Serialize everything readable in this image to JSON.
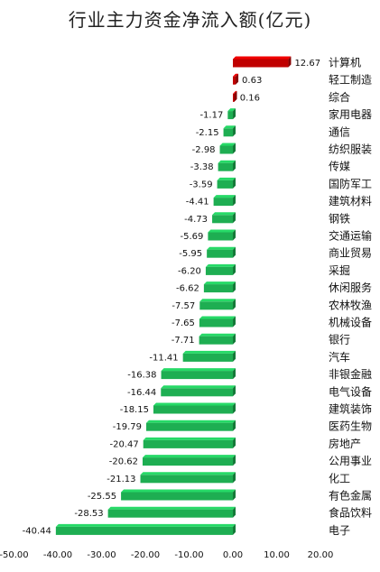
{
  "chart_data": {
    "type": "bar",
    "orientation": "horizontal",
    "title": "行业主力资金净流入额(亿元)",
    "categories": [
      "计算机",
      "轻工制造",
      "综合",
      "家用电器",
      "通信",
      "纺织服装",
      "传媒",
      "国防军工",
      "建筑材料",
      "钢铁",
      "交通运输",
      "商业贸易",
      "采掘",
      "休闲服务",
      "农林牧渔",
      "机械设备",
      "银行",
      "汽车",
      "非银金融",
      "电气设备",
      "建筑装饰",
      "医药生物",
      "房地产",
      "公用事业",
      "化工",
      "有色金属",
      "食品饮料",
      "电子"
    ],
    "values": [
      12.67,
      0.63,
      0.16,
      -1.17,
      -2.15,
      -2.98,
      -3.38,
      -3.59,
      -4.41,
      -4.73,
      -5.69,
      -5.95,
      -6.2,
      -6.62,
      -7.57,
      -7.65,
      -7.71,
      -11.41,
      -16.38,
      -16.44,
      -18.15,
      -19.79,
      -20.47,
      -20.62,
      -21.13,
      -25.55,
      -28.53,
      -40.44
    ],
    "value_labels": [
      "12.67",
      "0.63",
      "0.16",
      "-1.17",
      "-2.15",
      "-2.98",
      "-3.38",
      "-3.59",
      "-4.41",
      "-4.73",
      "-5.69",
      "-5.95",
      "-6.20",
      "-6.62",
      "-7.57",
      "-7.65",
      "-7.71",
      "-11.41",
      "-16.38",
      "-16.44",
      "-18.15",
      "-19.79",
      "-20.47",
      "-20.62",
      "-21.13",
      "-25.55",
      "-28.53",
      "-40.44"
    ],
    "xlim": [
      -50,
      20
    ],
    "x_ticks": [
      "-50.00",
      "-40.00",
      "-30.00",
      "-20.00",
      "-10.00",
      "0.00",
      "10.00",
      "20.00"
    ],
    "x_tick_values": [
      -50,
      -40,
      -30,
      -20,
      -10,
      0,
      10,
      20
    ],
    "grid": false,
    "legend": "none",
    "colors": {
      "positive": "#c00000",
      "negative": "#1eae52"
    }
  }
}
